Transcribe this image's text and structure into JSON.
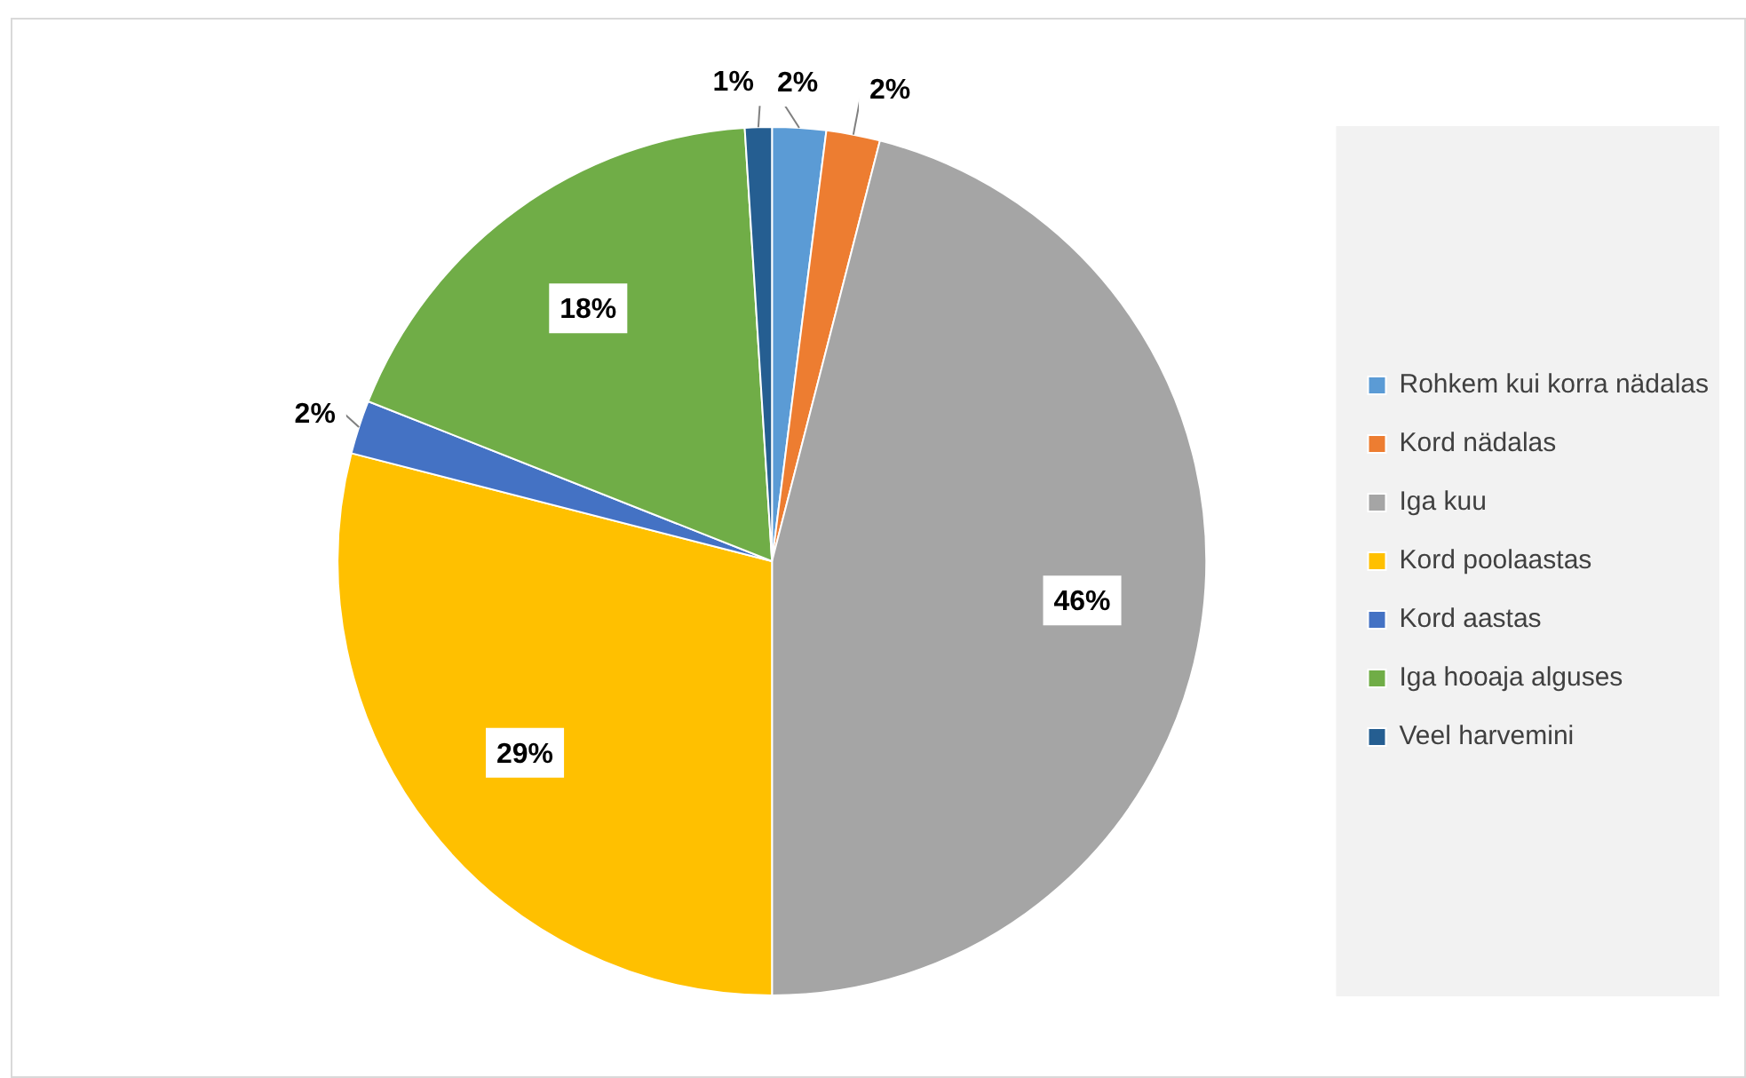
{
  "chart_data": {
    "type": "pie",
    "categories": [
      "Rohkem kui korra nädalas",
      "Kord nädalas",
      "Iga kuu",
      "Kord poolaastas",
      "Kord aastas",
      "Iga hooaja alguses",
      "Veel harvemini"
    ],
    "values": [
      2,
      2,
      46,
      29,
      2,
      18,
      1
    ],
    "value_labels": [
      "2%",
      "2%",
      "46%",
      "29%",
      "2%",
      "18%",
      "1%"
    ],
    "colors": [
      "#5b9bd5",
      "#ed7d31",
      "#a5a5a5",
      "#ffc000",
      "#4472c4",
      "#70ad47",
      "#255e91"
    ],
    "legend": "right"
  }
}
